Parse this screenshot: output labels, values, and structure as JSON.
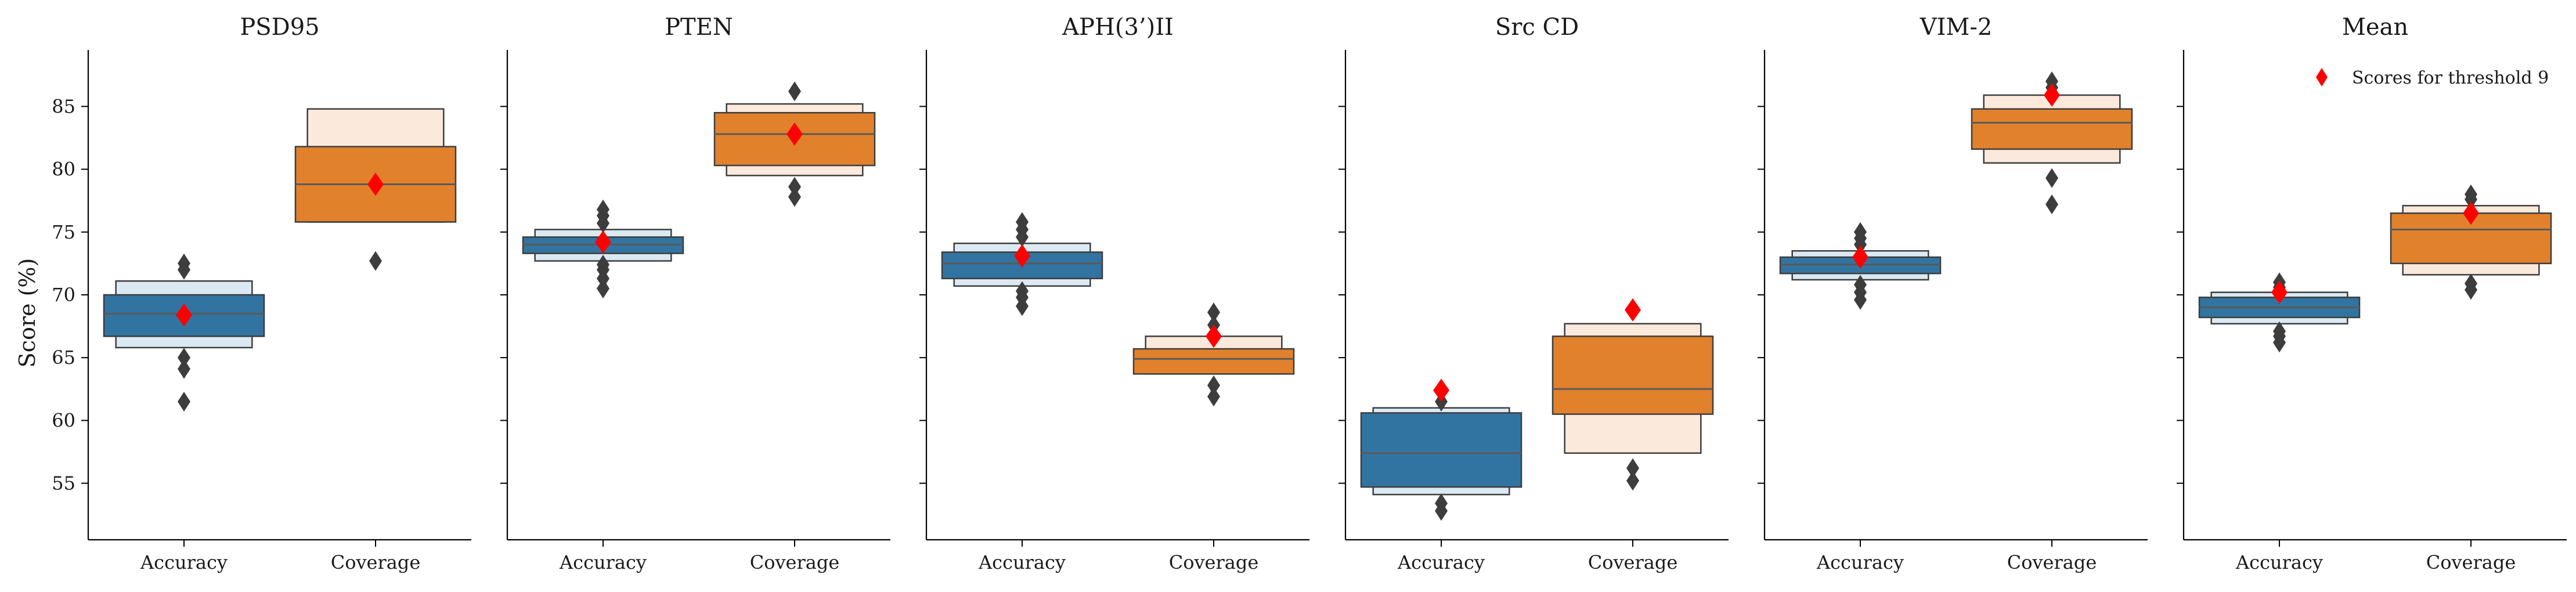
{
  "chart_data": {
    "type": "boxenplot",
    "ylabel": "Score (%)",
    "ylim": [
      50.5,
      89.5
    ],
    "yticks": [
      55,
      60,
      65,
      70,
      75,
      80,
      85
    ],
    "categories": [
      "Accuracy",
      "Coverage"
    ],
    "colors": {
      "Accuracy": "#3274a1",
      "Coverage": "#e1812c",
      "Accuracy_light": "#dbe9f2",
      "Coverage_light": "#fbe9dc",
      "marker": "#ff0000",
      "outlier": "#3d3d3d"
    },
    "legend": {
      "label": "Scores for threshold 9",
      "location": "top-right of Mean panel",
      "marker": "red-diamond"
    },
    "panels": [
      {
        "title": "PSD95",
        "boxes": [
          {
            "category": "Accuracy",
            "median": 68.5,
            "levels": [
              [
                66.7,
                70.0
              ],
              [
                65.8,
                71.1
              ]
            ],
            "outliers": [
              61.5,
              64.1,
              65.0,
              72.0,
              72.5
            ],
            "threshold_score": 68.4
          },
          {
            "category": "Coverage",
            "median": 78.8,
            "levels": [
              [
                75.8,
                81.8
              ],
              [
                75.8,
                84.8
              ]
            ],
            "outliers": [
              72.7
            ],
            "threshold_score": 78.8
          }
        ]
      },
      {
        "title": "PTEN",
        "boxes": [
          {
            "category": "Accuracy",
            "median": 74.0,
            "levels": [
              [
                73.3,
                74.6
              ],
              [
                72.7,
                75.2
              ]
            ],
            "outliers": [
              70.5,
              71.3,
              72.0,
              72.4,
              75.7,
              76.3,
              76.8
            ],
            "threshold_score": 74.2
          },
          {
            "category": "Coverage",
            "median": 82.8,
            "levels": [
              [
                80.3,
                84.5
              ],
              [
                79.5,
                85.2
              ]
            ],
            "outliers": [
              77.8,
              78.6,
              86.2
            ],
            "threshold_score": 82.8
          }
        ]
      },
      {
        "title": "APH(3’)II",
        "boxes": [
          {
            "category": "Accuracy",
            "median": 72.5,
            "levels": [
              [
                71.3,
                73.4
              ],
              [
                70.7,
                74.1
              ]
            ],
            "outliers": [
              69.1,
              69.8,
              70.3,
              74.6,
              75.2,
              75.8
            ],
            "threshold_score": 73.1
          },
          {
            "category": "Coverage",
            "median": 64.9,
            "levels": [
              [
                63.7,
                65.7
              ],
              [
                63.7,
                66.7
              ]
            ],
            "outliers": [
              61.9,
              62.8,
              67.6,
              68.6
            ],
            "threshold_score": 66.7
          }
        ]
      },
      {
        "title": "Src CD",
        "boxes": [
          {
            "category": "Accuracy",
            "median": 57.4,
            "levels": [
              [
                54.7,
                60.6
              ],
              [
                54.1,
                61.0
              ]
            ],
            "outliers": [
              52.8,
              53.4,
              61.5
            ],
            "threshold_score": 62.4
          },
          {
            "category": "Coverage",
            "median": 62.5,
            "levels": [
              [
                60.5,
                66.7
              ],
              [
                57.4,
                67.7
              ]
            ],
            "outliers": [
              55.2,
              56.2
            ],
            "threshold_score": 68.8
          }
        ]
      },
      {
        "title": "VIM-2",
        "boxes": [
          {
            "category": "Accuracy",
            "median": 72.4,
            "levels": [
              [
                71.7,
                73.0
              ],
              [
                71.2,
                73.5
              ]
            ],
            "outliers": [
              69.6,
              70.2,
              70.8,
              74.0,
              74.5,
              75.0
            ],
            "threshold_score": 73.0
          },
          {
            "category": "Coverage",
            "median": 83.7,
            "levels": [
              [
                81.6,
                84.8
              ],
              [
                80.5,
                85.9
              ]
            ],
            "outliers": [
              77.2,
              79.3,
              86.5,
              87.0
            ],
            "threshold_score": 85.9
          }
        ]
      },
      {
        "title": "Mean",
        "boxes": [
          {
            "category": "Accuracy",
            "median": 69.0,
            "levels": [
              [
                68.2,
                69.8
              ],
              [
                67.7,
                70.2
              ]
            ],
            "outliers": [
              66.2,
              66.7,
              67.1,
              70.6,
              71.0
            ],
            "threshold_score": 70.2
          },
          {
            "category": "Coverage",
            "median": 75.2,
            "levels": [
              [
                72.5,
                76.5
              ],
              [
                71.6,
                77.1
              ]
            ],
            "outliers": [
              70.4,
              70.9,
              77.6,
              78.0
            ],
            "threshold_score": 76.5
          }
        ]
      }
    ]
  }
}
